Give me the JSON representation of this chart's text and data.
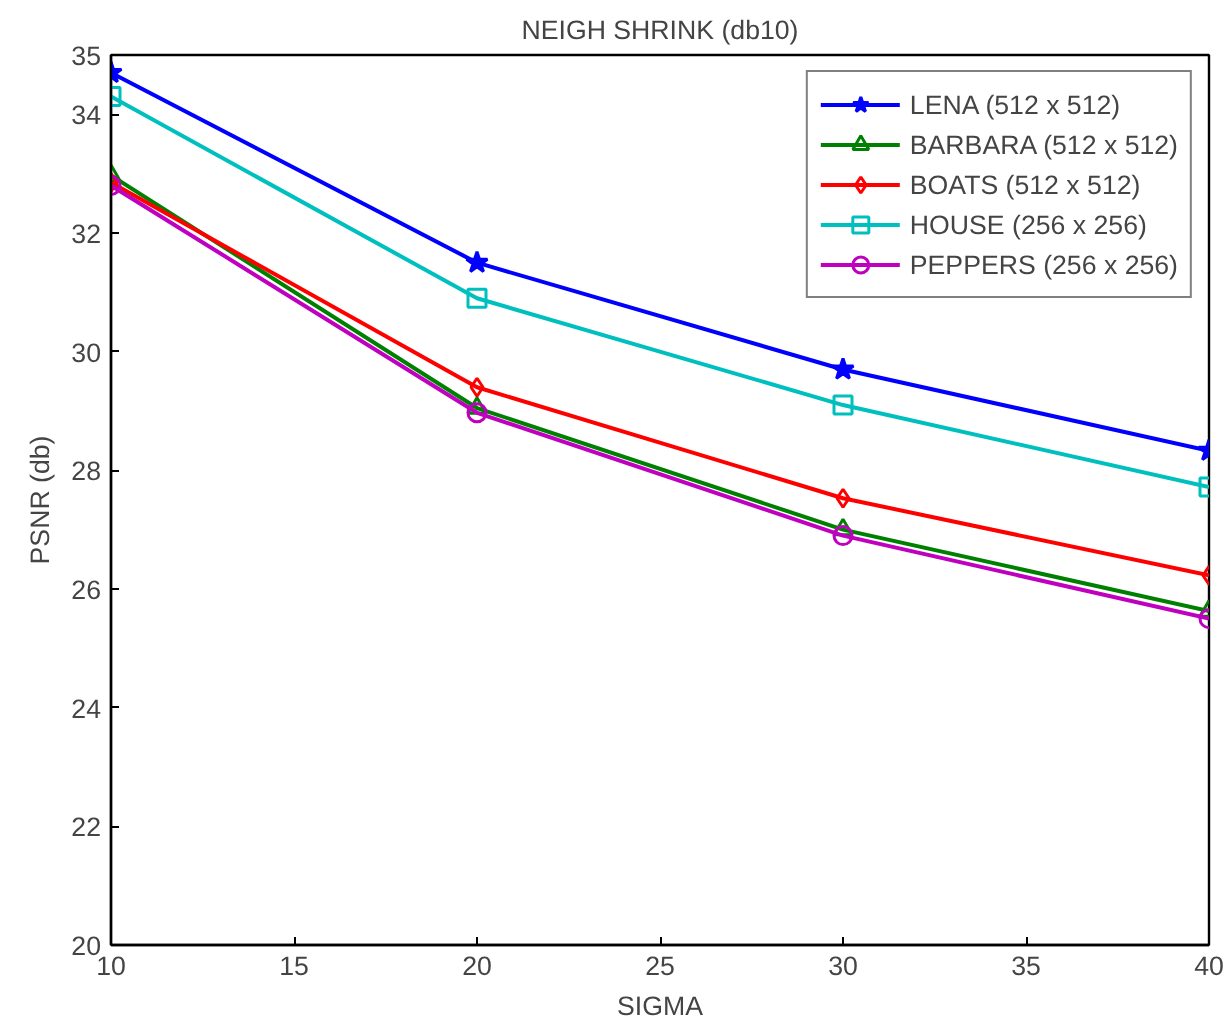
{
  "chart_data": {
    "type": "line",
    "title": "NEIGH SHRINK (db10)",
    "xlabel": "SIGMA",
    "ylabel": "PSNR (db)",
    "x": [
      10,
      20,
      30,
      40
    ],
    "series": [
      {
        "name": "LENA (512 x 512)",
        "color": "#0000ff",
        "marker": "star",
        "values": [
          34.7,
          31.5,
          29.7,
          28.33
        ]
      },
      {
        "name": "BARBARA (512 x 512)",
        "color": "#008000",
        "marker": "triangle",
        "values": [
          32.97,
          29.05,
          27.0,
          25.63
        ]
      },
      {
        "name": "BOATS (512 x 512)",
        "color": "#ff0000",
        "marker": "diamond",
        "values": [
          32.85,
          29.4,
          27.53,
          26.23
        ]
      },
      {
        "name": "HOUSE (256 x 256)",
        "color": "#00bfbf",
        "marker": "square",
        "values": [
          34.3,
          30.9,
          29.1,
          27.72
        ]
      },
      {
        "name": "PEPPERS (256 x 256)",
        "color": "#bf00bf",
        "marker": "circle",
        "values": [
          32.8,
          28.97,
          26.9,
          25.5
        ]
      }
    ],
    "xlim": [
      10,
      40
    ],
    "ylim": [
      20,
      35
    ],
    "xticks": [
      10,
      15,
      20,
      25,
      30,
      35,
      40
    ],
    "yticks": [
      20,
      22,
      24,
      26,
      28,
      30,
      32,
      34,
      35
    ],
    "grid": false,
    "legend": "top right",
    "line_style": "solid"
  }
}
